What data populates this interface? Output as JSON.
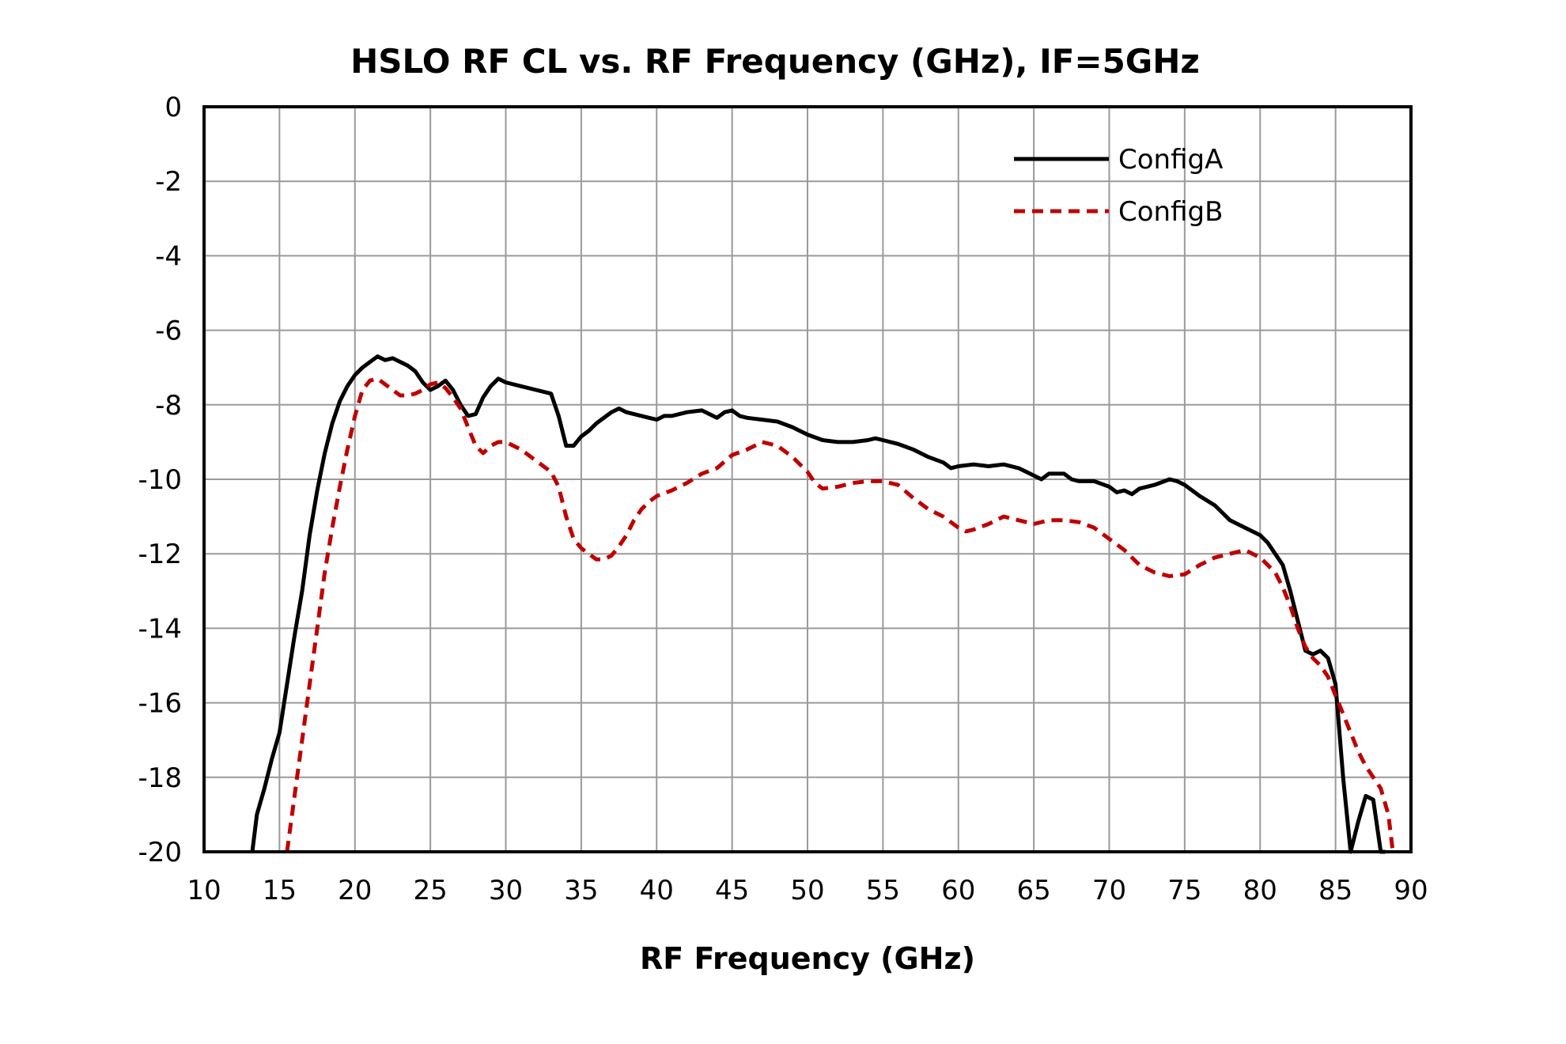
{
  "chart_data": {
    "type": "line",
    "title": "HSLO RF CL vs. RF Frequency (GHz), IF=5GHz",
    "xlabel": "RF Frequency (GHz)",
    "ylabel": "",
    "xlim": [
      10,
      90
    ],
    "ylim": [
      -20,
      0
    ],
    "xticks": [
      10,
      15,
      20,
      25,
      30,
      35,
      40,
      45,
      50,
      55,
      60,
      65,
      70,
      75,
      80,
      85,
      90
    ],
    "yticks": [
      0,
      -2,
      -4,
      -6,
      -8,
      -10,
      -12,
      -14,
      -16,
      -18,
      -20
    ],
    "grid": true,
    "legend_position": "top-right",
    "series": [
      {
        "name": "ConfigA",
        "color": "#000000",
        "dash": "solid",
        "x": [
          13.2,
          13.5,
          14.0,
          14.5,
          15.0,
          15.5,
          16.0,
          16.5,
          17.0,
          17.5,
          18.0,
          18.5,
          19.0,
          19.5,
          20.0,
          20.5,
          21.0,
          21.5,
          22.0,
          22.5,
          23.0,
          23.5,
          24.0,
          24.5,
          25.0,
          25.5,
          26.0,
          26.5,
          27.0,
          27.5,
          28.0,
          28.5,
          29.0,
          29.5,
          30.0,
          31.0,
          32.0,
          33.0,
          33.5,
          34.0,
          34.5,
          35.0,
          35.5,
          36.0,
          36.5,
          37.0,
          37.5,
          38.0,
          38.5,
          39.0,
          39.5,
          40.0,
          40.5,
          41.0,
          42.0,
          43.0,
          43.5,
          44.0,
          44.5,
          45.0,
          45.5,
          46.0,
          47.0,
          48.0,
          49.0,
          50.0,
          51.0,
          52.0,
          53.0,
          54.0,
          54.5,
          55.0,
          56.0,
          57.0,
          58.0,
          59.0,
          59.5,
          60.0,
          61.0,
          62.0,
          63.0,
          64.0,
          65.0,
          65.5,
          66.0,
          67.0,
          67.5,
          68.0,
          69.0,
          70.0,
          70.5,
          71.0,
          71.5,
          72.0,
          73.0,
          74.0,
          74.5,
          75.0,
          76.0,
          77.0,
          77.5,
          78.0,
          79.0,
          80.0,
          80.5,
          81.0,
          81.5,
          82.0,
          82.5,
          83.0,
          83.5,
          84.0,
          84.5,
          85.0,
          85.5,
          86.0,
          86.5,
          87.0,
          87.5,
          88.0,
          88.3
        ],
        "values": [
          -20.0,
          -19.0,
          -18.3,
          -17.5,
          -16.8,
          -15.5,
          -14.2,
          -13.0,
          -11.5,
          -10.3,
          -9.3,
          -8.5,
          -7.9,
          -7.5,
          -7.2,
          -7.0,
          -6.85,
          -6.7,
          -6.8,
          -6.75,
          -6.85,
          -6.95,
          -7.1,
          -7.4,
          -7.6,
          -7.5,
          -7.35,
          -7.6,
          -8.0,
          -8.3,
          -8.25,
          -7.8,
          -7.5,
          -7.3,
          -7.4,
          -7.5,
          -7.6,
          -7.7,
          -8.3,
          -9.1,
          -9.1,
          -8.85,
          -8.7,
          -8.5,
          -8.35,
          -8.2,
          -8.1,
          -8.2,
          -8.25,
          -8.3,
          -8.35,
          -8.4,
          -8.3,
          -8.3,
          -8.2,
          -8.15,
          -8.25,
          -8.35,
          -8.2,
          -8.15,
          -8.3,
          -8.35,
          -8.4,
          -8.45,
          -8.6,
          -8.8,
          -8.95,
          -9.0,
          -9.0,
          -8.95,
          -8.9,
          -8.95,
          -9.05,
          -9.2,
          -9.4,
          -9.55,
          -9.7,
          -9.65,
          -9.6,
          -9.65,
          -9.6,
          -9.7,
          -9.9,
          -10.0,
          -9.85,
          -9.85,
          -10.0,
          -10.05,
          -10.05,
          -10.2,
          -10.35,
          -10.3,
          -10.4,
          -10.25,
          -10.15,
          -10.0,
          -10.05,
          -10.15,
          -10.45,
          -10.7,
          -10.9,
          -11.1,
          -11.3,
          -11.5,
          -11.7,
          -12.0,
          -12.3,
          -13.0,
          -13.8,
          -14.6,
          -14.7,
          -14.6,
          -14.8,
          -15.5,
          -18.0,
          -20.0,
          -19.2,
          -18.5,
          -18.6,
          -20.0,
          -20.0
        ]
      },
      {
        "name": "ConfigB",
        "color": "#c00000",
        "dash": "dashed",
        "x": [
          15.5,
          16.0,
          16.5,
          17.0,
          17.5,
          18.0,
          18.5,
          19.0,
          19.5,
          20.0,
          20.5,
          21.0,
          21.5,
          22.0,
          22.5,
          23.0,
          23.5,
          24.0,
          24.5,
          25.0,
          25.5,
          26.0,
          26.5,
          27.0,
          27.5,
          28.0,
          28.5,
          29.0,
          29.5,
          30.0,
          31.0,
          32.0,
          33.0,
          33.5,
          34.0,
          34.5,
          35.0,
          35.5,
          36.0,
          36.5,
          37.0,
          37.5,
          38.0,
          38.5,
          39.0,
          39.5,
          40.0,
          41.0,
          42.0,
          43.0,
          44.0,
          45.0,
          46.0,
          47.0,
          48.0,
          49.0,
          50.0,
          50.5,
          51.0,
          52.0,
          53.0,
          54.0,
          55.0,
          56.0,
          57.0,
          58.0,
          59.0,
          60.0,
          60.5,
          61.0,
          62.0,
          63.0,
          64.0,
          65.0,
          66.0,
          67.0,
          68.0,
          69.0,
          70.0,
          71.0,
          72.0,
          73.0,
          74.0,
          75.0,
          76.0,
          77.0,
          78.0,
          79.0,
          80.0,
          80.5,
          81.0,
          81.5,
          82.0,
          82.5,
          83.0,
          83.5,
          84.0,
          84.5,
          85.0,
          85.5,
          86.0,
          86.5,
          87.0,
          87.5,
          88.0,
          88.5,
          88.8
        ],
        "values": [
          -20.0,
          -18.5,
          -17.0,
          -15.5,
          -14.0,
          -12.5,
          -11.3,
          -10.2,
          -9.2,
          -8.3,
          -7.6,
          -7.35,
          -7.3,
          -7.45,
          -7.6,
          -7.75,
          -7.75,
          -7.7,
          -7.6,
          -7.45,
          -7.4,
          -7.55,
          -7.8,
          -8.1,
          -8.6,
          -9.1,
          -9.3,
          -9.1,
          -9.0,
          -9.0,
          -9.2,
          -9.5,
          -9.8,
          -10.2,
          -11.0,
          -11.6,
          -11.85,
          -12.0,
          -12.15,
          -12.15,
          -12.05,
          -11.8,
          -11.5,
          -11.1,
          -10.8,
          -10.6,
          -10.45,
          -10.3,
          -10.1,
          -9.85,
          -9.7,
          -9.35,
          -9.2,
          -9.0,
          -9.1,
          -9.4,
          -9.8,
          -10.1,
          -10.25,
          -10.2,
          -10.1,
          -10.05,
          -10.05,
          -10.15,
          -10.5,
          -10.8,
          -11.0,
          -11.3,
          -11.4,
          -11.35,
          -11.2,
          -11.0,
          -11.1,
          -11.2,
          -11.1,
          -11.1,
          -11.15,
          -11.3,
          -11.6,
          -11.9,
          -12.3,
          -12.5,
          -12.6,
          -12.55,
          -12.3,
          -12.1,
          -12.0,
          -11.9,
          -12.1,
          -12.3,
          -12.5,
          -12.9,
          -13.4,
          -14.0,
          -14.5,
          -14.8,
          -15.0,
          -15.3,
          -15.8,
          -16.3,
          -16.8,
          -17.3,
          -17.7,
          -18.0,
          -18.3,
          -19.0,
          -20.0
        ]
      }
    ]
  }
}
